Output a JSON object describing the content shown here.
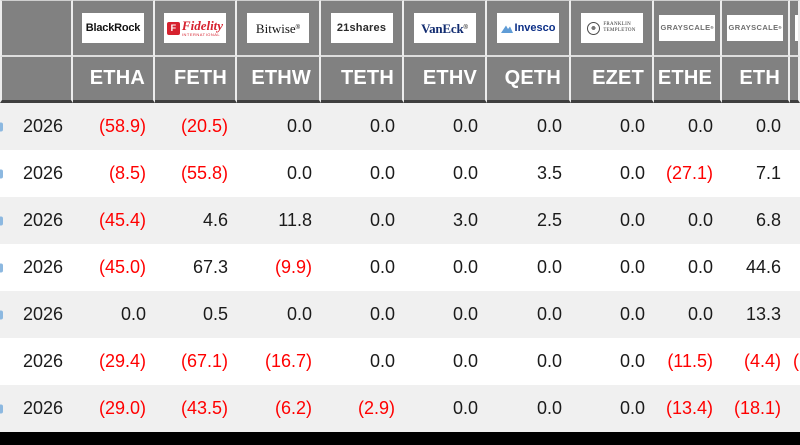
{
  "table": {
    "issuers": [
      {
        "brand": "blackrock",
        "logo_text": "BlackRock",
        "ticker": "ETHA"
      },
      {
        "brand": "fidelity",
        "logo_badge": "F",
        "logo_text": "Fidelity",
        "logo_sub": "INTERNATIONAL",
        "ticker": "FETH"
      },
      {
        "brand": "bitwise",
        "logo_text": "Bitwise",
        "logo_reg": "®",
        "ticker": "ETHW"
      },
      {
        "brand": "21shares",
        "logo_text": "21shares",
        "ticker": "TETH"
      },
      {
        "brand": "vaneck",
        "logo_text": "VanEck",
        "logo_reg": "®",
        "ticker": "ETHV"
      },
      {
        "brand": "invesco",
        "logo_text": "Invesco",
        "ticker": "QETH"
      },
      {
        "brand": "franklin-templeton",
        "logo_line1": "FRANKLIN",
        "logo_line2": "TEMPLETON",
        "ticker": "EZET"
      },
      {
        "brand": "grayscale",
        "logo_text": "GRAYSCALE",
        "logo_reg": "®",
        "ticker": "ETHE"
      },
      {
        "brand": "grayscale",
        "logo_text": "GRAYSCALE",
        "logo_reg": "®",
        "ticker": "ETH"
      }
    ],
    "rows": [
      {
        "date": "2026",
        "edge_fragment": true,
        "values": [
          "(58.9)",
          "(20.5)",
          "0.0",
          "0.0",
          "0.0",
          "0.0",
          "0.0",
          "0.0",
          "0.0"
        ],
        "overflow": ""
      },
      {
        "date": "2026",
        "edge_fragment": true,
        "values": [
          "(8.5)",
          "(55.8)",
          "0.0",
          "0.0",
          "0.0",
          "3.5",
          "0.0",
          "(27.1)",
          "7.1"
        ],
        "overflow": ""
      },
      {
        "date": "2026",
        "edge_fragment": true,
        "values": [
          "(45.4)",
          "4.6",
          "11.8",
          "0.0",
          "3.0",
          "2.5",
          "0.0",
          "0.0",
          "6.8"
        ],
        "overflow": ""
      },
      {
        "date": "2026",
        "edge_fragment": true,
        "values": [
          "(45.0)",
          "67.3",
          "(9.9)",
          "0.0",
          "0.0",
          "0.0",
          "0.0",
          "0.0",
          "44.6"
        ],
        "overflow": ""
      },
      {
        "date": "2026",
        "edge_fragment": true,
        "values": [
          "0.0",
          "0.5",
          "0.0",
          "0.0",
          "0.0",
          "0.0",
          "0.0",
          "0.0",
          "13.3"
        ],
        "overflow": ""
      },
      {
        "date": "2026",
        "edge_fragment": false,
        "values": [
          "(29.4)",
          "(67.1)",
          "(16.7)",
          "0.0",
          "0.0",
          "0.0",
          "0.0",
          "(11.5)",
          "(4.4)"
        ],
        "overflow": "("
      },
      {
        "date": "2026",
        "edge_fragment": true,
        "values": [
          "(29.0)",
          "(43.5)",
          "(6.2)",
          "(2.9)",
          "0.0",
          "0.0",
          "0.0",
          "(13.4)",
          "(18.1)"
        ],
        "overflow": ""
      }
    ]
  },
  "colors": {
    "header_bg": "#818181",
    "header_text": "#ffffff",
    "negative": "#ff0000",
    "value_text": "#1b1b1b",
    "row_alt": "#f0f0f0",
    "bottom_bar": "#000000"
  }
}
